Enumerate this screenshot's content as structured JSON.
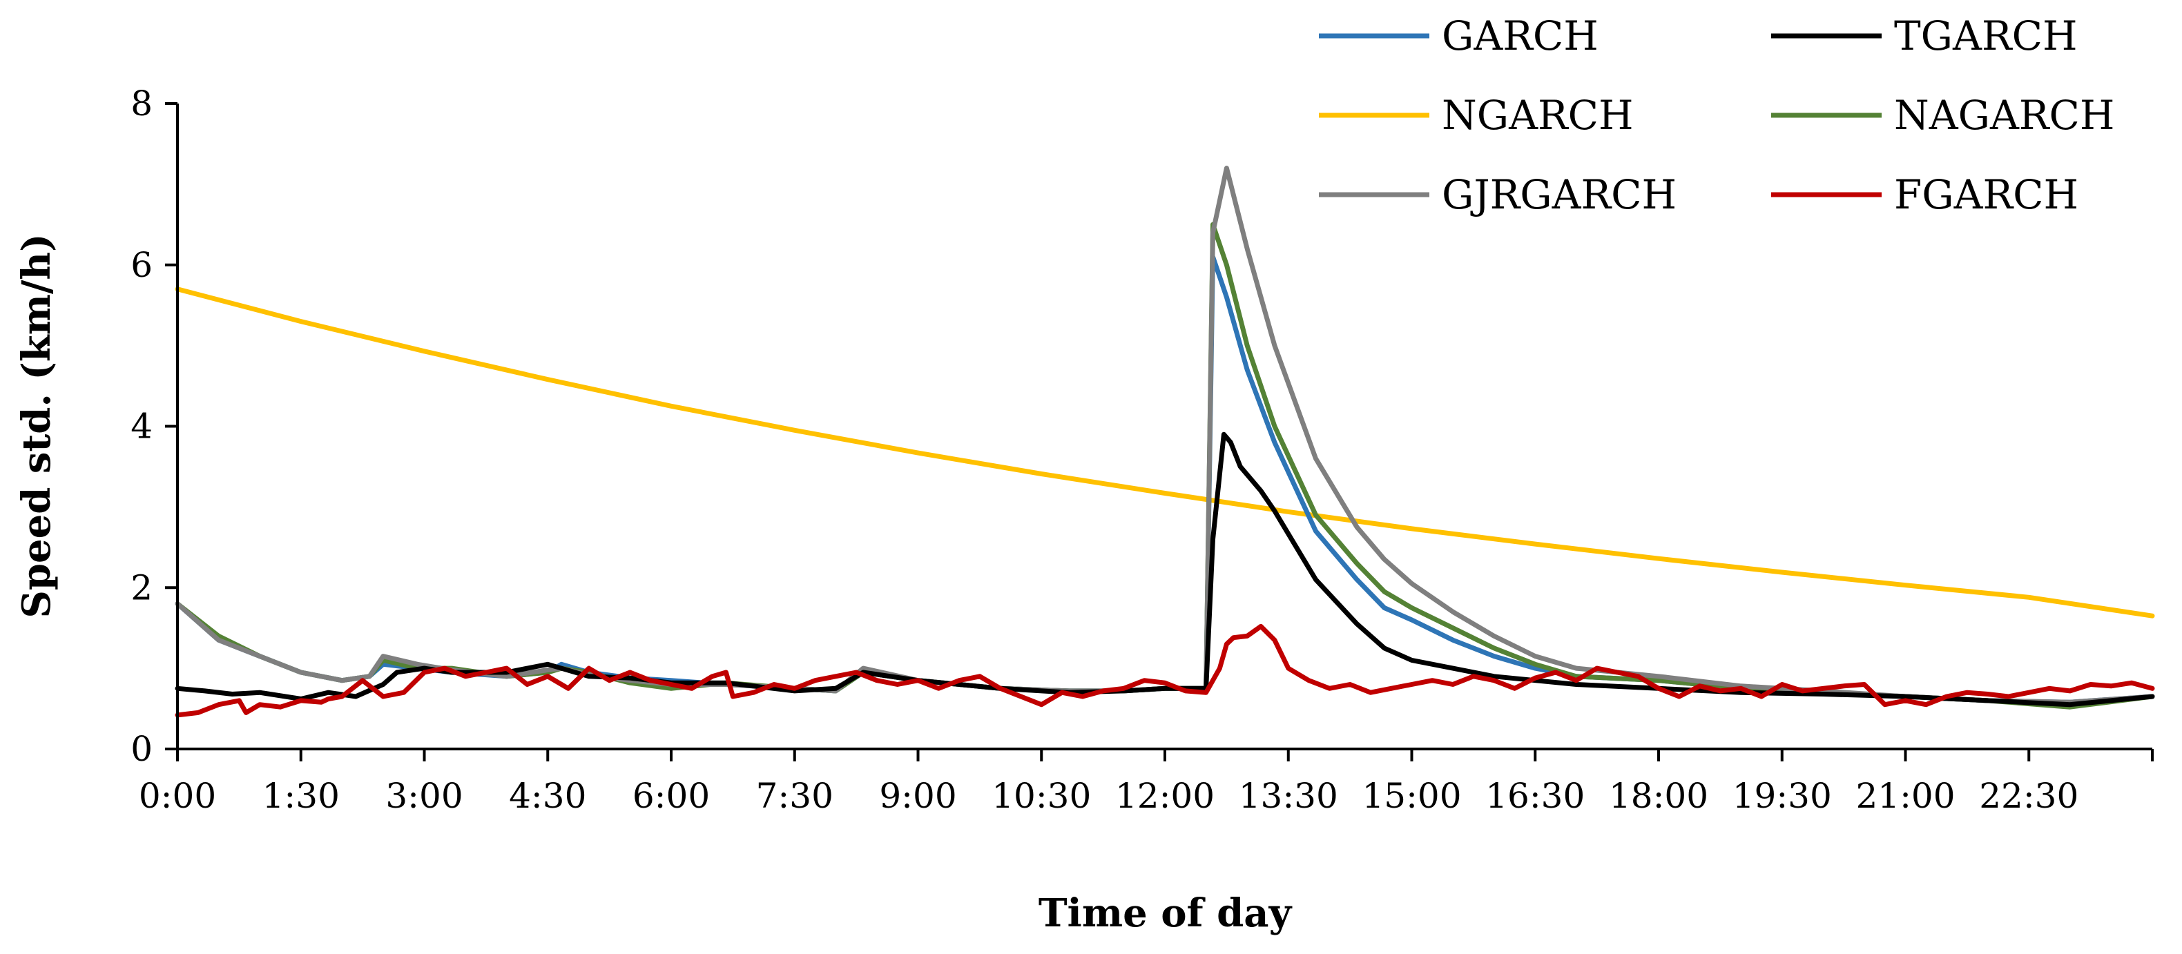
{
  "chart_data": {
    "type": "line",
    "title": "",
    "xlabel": "Time of day",
    "ylabel": "Speed std. (km/h)",
    "xlim": [
      0,
      1440
    ],
    "ylim": [
      0,
      8
    ],
    "y_ticks": [
      "0",
      "2",
      "4",
      "6",
      "8"
    ],
    "x_tick_labels": [
      "0:00",
      "1:30",
      "3:00",
      "4:30",
      "6:00",
      "7:30",
      "9:00",
      "10:30",
      "12:00",
      "13:30",
      "15:00",
      "16:30",
      "18:00",
      "19:30",
      "21:00",
      "22:30"
    ],
    "x_tick_minutes": [
      0,
      90,
      180,
      270,
      360,
      450,
      540,
      630,
      720,
      810,
      900,
      990,
      1080,
      1170,
      1260,
      1350
    ],
    "grid": false,
    "legend_position": "top-right",
    "series": [
      {
        "name": "GARCH",
        "color": "#2E75B6",
        "x": [
          0,
          30,
          60,
          90,
          120,
          140,
          150,
          175,
          200,
          240,
          270,
          280,
          300,
          330,
          360,
          400,
          450,
          480,
          500,
          540,
          600,
          650,
          690,
          720,
          750,
          755,
          765,
          780,
          800,
          830,
          860,
          880,
          900,
          930,
          960,
          990,
          1020,
          1080,
          1140,
          1200,
          1260,
          1320,
          1380,
          1440
        ],
        "y": [
          1.8,
          1.35,
          1.15,
          0.95,
          0.85,
          0.9,
          1.05,
          1.0,
          0.95,
          0.9,
          0.95,
          1.05,
          0.95,
          0.88,
          0.85,
          0.8,
          0.75,
          0.72,
          0.95,
          0.85,
          0.75,
          0.72,
          0.72,
          0.75,
          0.75,
          6.1,
          5.6,
          4.7,
          3.8,
          2.7,
          2.1,
          1.75,
          1.6,
          1.35,
          1.15,
          1.0,
          0.9,
          0.85,
          0.75,
          0.7,
          0.65,
          0.6,
          0.58,
          0.65
        ]
      },
      {
        "name": "TGARCH",
        "color": "#000000",
        "x": [
          0,
          20,
          40,
          60,
          90,
          110,
          130,
          150,
          160,
          180,
          200,
          240,
          270,
          300,
          330,
          360,
          400,
          450,
          480,
          500,
          540,
          600,
          650,
          690,
          720,
          750,
          755,
          763,
          768,
          775,
          790,
          800,
          830,
          860,
          880,
          900,
          930,
          960,
          990,
          1020,
          1080,
          1140,
          1200,
          1260,
          1320,
          1380,
          1440
        ],
        "y": [
          0.75,
          0.72,
          0.68,
          0.7,
          0.62,
          0.7,
          0.65,
          0.8,
          0.95,
          1.0,
          0.95,
          0.95,
          1.05,
          0.9,
          0.88,
          0.82,
          0.82,
          0.72,
          0.75,
          0.95,
          0.85,
          0.75,
          0.7,
          0.72,
          0.75,
          0.75,
          2.6,
          3.9,
          3.8,
          3.5,
          3.2,
          2.95,
          2.1,
          1.55,
          1.25,
          1.1,
          1.0,
          0.9,
          0.85,
          0.8,
          0.75,
          0.7,
          0.68,
          0.65,
          0.6,
          0.55,
          0.65
        ]
      },
      {
        "name": "NGARCH",
        "color": "#FFC000",
        "x": [
          0,
          90,
          180,
          270,
          360,
          450,
          540,
          630,
          720,
          810,
          900,
          990,
          1080,
          1170,
          1260,
          1350,
          1440
        ],
        "y": [
          5.7,
          5.3,
          4.93,
          4.58,
          4.25,
          3.95,
          3.67,
          3.41,
          3.17,
          2.94,
          2.73,
          2.54,
          2.36,
          2.19,
          2.03,
          1.88,
          1.65
        ]
      },
      {
        "name": "NAGARCH",
        "color": "#548235",
        "x": [
          0,
          30,
          60,
          90,
          120,
          140,
          150,
          175,
          200,
          240,
          270,
          280,
          300,
          330,
          360,
          400,
          450,
          480,
          500,
          540,
          600,
          650,
          690,
          720,
          750,
          755,
          765,
          780,
          800,
          830,
          860,
          880,
          900,
          930,
          960,
          990,
          1020,
          1080,
          1140,
          1200,
          1260,
          1320,
          1380,
          1440
        ],
        "y": [
          1.8,
          1.4,
          1.15,
          0.95,
          0.85,
          0.9,
          1.1,
          1.0,
          1.0,
          0.9,
          0.95,
          1.0,
          0.95,
          0.82,
          0.75,
          0.82,
          0.75,
          0.72,
          0.95,
          0.85,
          0.75,
          0.72,
          0.72,
          0.75,
          0.75,
          6.5,
          6.0,
          5.0,
          4.0,
          2.9,
          2.3,
          1.95,
          1.75,
          1.5,
          1.25,
          1.05,
          0.9,
          0.85,
          0.75,
          0.7,
          0.65,
          0.6,
          0.52,
          0.65
        ]
      },
      {
        "name": "GJRGARCH",
        "color": "#7F7F7F",
        "x": [
          0,
          30,
          60,
          90,
          120,
          140,
          150,
          175,
          200,
          240,
          270,
          280,
          300,
          330,
          360,
          400,
          450,
          480,
          500,
          540,
          600,
          650,
          690,
          720,
          750,
          755,
          765,
          780,
          800,
          830,
          860,
          880,
          900,
          930,
          960,
          990,
          1020,
          1080,
          1140,
          1200,
          1260,
          1320,
          1380,
          1440
        ],
        "y": [
          1.8,
          1.35,
          1.15,
          0.95,
          0.85,
          0.9,
          1.15,
          1.05,
          0.98,
          0.9,
          0.98,
          1.0,
          0.92,
          0.85,
          0.8,
          0.8,
          0.75,
          0.72,
          1.0,
          0.85,
          0.75,
          0.72,
          0.72,
          0.75,
          0.75,
          6.4,
          7.2,
          6.2,
          5.0,
          3.6,
          2.75,
          2.35,
          2.05,
          1.7,
          1.4,
          1.15,
          1.0,
          0.9,
          0.78,
          0.72,
          0.65,
          0.6,
          0.58,
          0.65
        ]
      },
      {
        "name": "FGARCH",
        "color": "#C00000",
        "x": [
          0,
          15,
          30,
          45,
          50,
          60,
          75,
          90,
          105,
          110,
          120,
          135,
          150,
          165,
          180,
          195,
          210,
          225,
          240,
          255,
          270,
          285,
          300,
          315,
          330,
          345,
          360,
          375,
          390,
          400,
          405,
          420,
          435,
          450,
          465,
          480,
          495,
          510,
          525,
          540,
          555,
          570,
          585,
          600,
          630,
          645,
          660,
          675,
          690,
          705,
          720,
          735,
          750,
          760,
          765,
          770,
          780,
          790,
          800,
          810,
          825,
          840,
          855,
          870,
          885,
          900,
          915,
          930,
          945,
          960,
          975,
          990,
          1005,
          1020,
          1035,
          1050,
          1065,
          1080,
          1095,
          1110,
          1125,
          1140,
          1155,
          1170,
          1185,
          1200,
          1215,
          1230,
          1245,
          1260,
          1275,
          1290,
          1305,
          1320,
          1335,
          1350,
          1365,
          1380,
          1395,
          1410,
          1425,
          1440
        ],
        "y": [
          0.42,
          0.45,
          0.55,
          0.6,
          0.45,
          0.55,
          0.52,
          0.6,
          0.58,
          0.62,
          0.65,
          0.85,
          0.65,
          0.7,
          0.95,
          1.0,
          0.9,
          0.95,
          1.0,
          0.8,
          0.9,
          0.75,
          1.0,
          0.85,
          0.95,
          0.85,
          0.8,
          0.75,
          0.9,
          0.95,
          0.65,
          0.7,
          0.8,
          0.75,
          0.85,
          0.9,
          0.95,
          0.85,
          0.8,
          0.85,
          0.75,
          0.85,
          0.9,
          0.75,
          0.55,
          0.7,
          0.65,
          0.72,
          0.75,
          0.85,
          0.82,
          0.72,
          0.7,
          1.0,
          1.3,
          1.38,
          1.4,
          1.52,
          1.35,
          1.0,
          0.85,
          0.75,
          0.8,
          0.7,
          0.75,
          0.8,
          0.85,
          0.8,
          0.9,
          0.85,
          0.75,
          0.88,
          0.95,
          0.85,
          1.0,
          0.95,
          0.9,
          0.75,
          0.65,
          0.78,
          0.72,
          0.75,
          0.65,
          0.8,
          0.72,
          0.75,
          0.78,
          0.8,
          0.55,
          0.6,
          0.55,
          0.65,
          0.7,
          0.68,
          0.65,
          0.7,
          0.75,
          0.72,
          0.8,
          0.78,
          0.82,
          0.75
        ]
      }
    ]
  }
}
